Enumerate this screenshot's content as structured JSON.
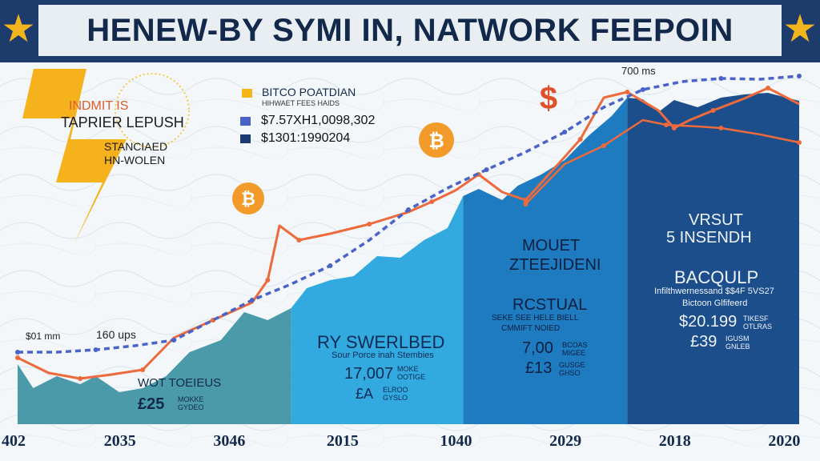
{
  "title": "HENEW-BY SYMI IN, NATWORK FEEPOIN",
  "icons": [
    "star-icon",
    "lightning-bolt-icon",
    "bitcoin-coin-icon",
    "dollar-sign-icon"
  ],
  "colors": {
    "banner": "#1d3b6b",
    "star": "#f2b51d",
    "bolt": "#f6b21c",
    "orange_line": "#ec6a3c",
    "blue_dashed": "#4a63c8",
    "area_teal": "#4a9aaa",
    "area_cyan": "#32aadf",
    "area_mid": "#1e7bc0",
    "area_dark": "#1c4e8c",
    "legend_gold": "#f4b619"
  },
  "bolt_labels": {
    "line1": "INDMIT IS",
    "line2": "TAPRIER LEPUSH",
    "line3": "STANCIAED",
    "line4": "HN-WOLEN"
  },
  "legend": {
    "title": "BITCO POATDIAN",
    "subtitle": "HIHWAET FEES HAIDS",
    "items": [
      {
        "label": "$7.57XH1,0098,302"
      },
      {
        "label": "$1301:1990204"
      }
    ]
  },
  "annotations": {
    "left_value": "$01 mm",
    "mid_value": "160 ups",
    "top_right_value": "700 ms"
  },
  "panels": [
    {
      "heading": "WOT TOEIEUS",
      "value": "£25",
      "note": "MOKKE\nGYDEO"
    },
    {
      "heading": "RY SWERLBED",
      "sub": "Sour Porce inah Stembies",
      "value": "17,007",
      "note": "MOKE\nOOTIGE",
      "value2": "£A",
      "note2": "ELROO\nGYSLO"
    },
    {
      "heading": "MOUET",
      "heading2": "ZTEEJIDENI",
      "sub_heading": "RCSTUAL",
      "sub": "SEKE SEE HELE BIELL",
      "sub2": "CMMIFT NOIED",
      "value": "7,00",
      "note": "BCOAS\nMIGEE",
      "value2": "£13",
      "note2": "GUSGE\nGHSO"
    },
    {
      "heading": "VRSUT",
      "heading2": "5 INSENDH",
      "sub_heading": "BACQULP",
      "sub": "Infilthwernessand $$4F 5VS27",
      "sub2": "Bictoon Glfifeerd",
      "value": "$20.199",
      "note": "TIKESF\nOTLRAS",
      "value2": "£39",
      "note2": "IGUSM\nGNLEB"
    }
  ],
  "chart_data": {
    "type": "area",
    "title": "HENEW-BY SYMI IN, NATWORK FEEPOIN",
    "categories": [
      "402",
      "2035",
      "3046",
      "2015",
      "1040",
      "2029",
      "2018",
      "2020"
    ],
    "series": [
      {
        "name": "$7.57XH1,0098,302",
        "style": "dashed-line",
        "values": [
          [
            0,
            440
          ],
          [
            0.05,
            440
          ],
          [
            0.1,
            437
          ],
          [
            0.15,
            432
          ],
          [
            0.2,
            425
          ],
          [
            0.25,
            400
          ],
          [
            0.3,
            375
          ],
          [
            0.35,
            355
          ],
          [
            0.4,
            332
          ],
          [
            0.45,
            300
          ],
          [
            0.5,
            262
          ],
          [
            0.55,
            235
          ],
          [
            0.6,
            212
          ],
          [
            0.65,
            190
          ],
          [
            0.7,
            165
          ],
          [
            0.75,
            134
          ],
          [
            0.8,
            112
          ],
          [
            0.85,
            102
          ],
          [
            0.9,
            98
          ],
          [
            0.95,
            99
          ],
          [
            1.0,
            95
          ]
        ]
      },
      {
        "name": "$1301:1990204",
        "style": "line",
        "values": [
          [
            0,
            447
          ],
          [
            0.04,
            466
          ],
          [
            0.08,
            473
          ],
          [
            0.12,
            468
          ],
          [
            0.16,
            462
          ],
          [
            0.2,
            422
          ],
          [
            0.25,
            400
          ],
          [
            0.3,
            378
          ],
          [
            0.32,
            350
          ],
          [
            0.335,
            282
          ],
          [
            0.36,
            300
          ],
          [
            0.4,
            292
          ],
          [
            0.45,
            280
          ],
          [
            0.5,
            265
          ],
          [
            0.53,
            252
          ],
          [
            0.56,
            238
          ],
          [
            0.59,
            218
          ],
          [
            0.62,
            240
          ],
          [
            0.65,
            250
          ],
          [
            0.7,
            196
          ],
          [
            0.72,
            174
          ],
          [
            0.75,
            122
          ],
          [
            0.78,
            115
          ],
          [
            0.82,
            138
          ],
          [
            0.84,
            160
          ],
          [
            0.86,
            150
          ],
          [
            0.89,
            138
          ],
          [
            0.93,
            123
          ],
          [
            0.96,
            110
          ],
          [
            1.0,
            130
          ]
        ]
      },
      {
        "name": "",
        "style": "line",
        "values": [
          [
            0.65,
            255
          ],
          [
            0.7,
            205
          ],
          [
            0.75,
            182
          ],
          [
            0.8,
            150
          ],
          [
            0.83,
            156
          ],
          [
            0.87,
            158
          ],
          [
            0.9,
            160
          ],
          [
            0.95,
            168
          ],
          [
            1.0,
            178
          ]
        ]
      },
      {
        "name": "",
        "style": "area",
        "values": [
          [
            0,
            455
          ],
          [
            0.02,
            485
          ],
          [
            0.05,
            470
          ],
          [
            0.08,
            480
          ],
          [
            0.1,
            470
          ],
          [
            0.13,
            490
          ],
          [
            0.16,
            485
          ],
          [
            0.19,
            470
          ],
          [
            0.22,
            440
          ],
          [
            0.26,
            425
          ],
          [
            0.29,
            390
          ],
          [
            0.32,
            400
          ],
          [
            0.35,
            385
          ],
          [
            0.37,
            360
          ],
          [
            0.4,
            350
          ],
          [
            0.43,
            345
          ],
          [
            0.46,
            320
          ],
          [
            0.49,
            322
          ],
          [
            0.52,
            300
          ],
          [
            0.55,
            285
          ],
          [
            0.57,
            245
          ],
          [
            0.59,
            236
          ],
          [
            0.62,
            250
          ],
          [
            0.64,
            232
          ],
          [
            0.67,
            218
          ],
          [
            0.7,
            200
          ],
          [
            0.73,
            170
          ],
          [
            0.76,
            145
          ],
          [
            0.78,
            122
          ],
          [
            0.8,
            124
          ],
          [
            0.82,
            140
          ],
          [
            0.84,
            125
          ],
          [
            0.87,
            134
          ],
          [
            0.9,
            122
          ],
          [
            0.93,
            118
          ],
          [
            0.96,
            116
          ],
          [
            1.0,
            126
          ]
        ]
      }
    ],
    "panel_splits": [
      0.35,
      0.57,
      0.78
    ],
    "xlabel": "",
    "ylabel": "",
    "grid": false,
    "legend_position": "top-center"
  }
}
